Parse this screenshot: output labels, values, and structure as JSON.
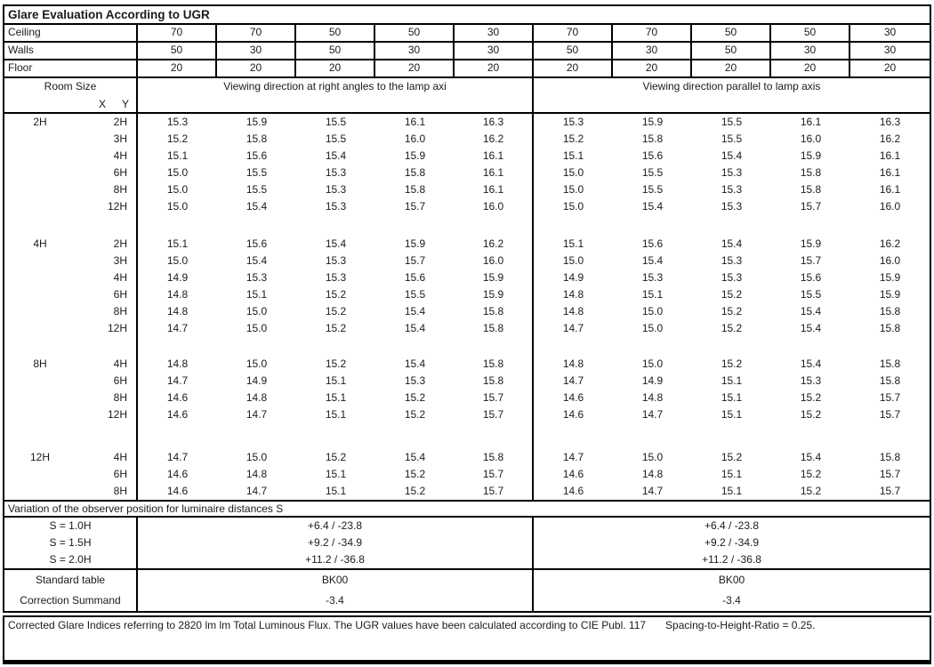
{
  "title": "Glare Evaluation According to UGR",
  "surface_rows": [
    {
      "label": "Ceiling",
      "values": [
        "70",
        "70",
        "50",
        "50",
        "30",
        "70",
        "70",
        "50",
        "50",
        "30"
      ]
    },
    {
      "label": "Walls",
      "values": [
        "50",
        "30",
        "50",
        "30",
        "30",
        "50",
        "30",
        "50",
        "30",
        "30"
      ]
    },
    {
      "label": "Floor",
      "values": [
        "20",
        "20",
        "20",
        "20",
        "20",
        "20",
        "20",
        "20",
        "20",
        "20"
      ]
    }
  ],
  "header": {
    "room_size": "Room Size",
    "x": "X",
    "y": "Y",
    "left_section": "Viewing direction at right angles to the lamp axi",
    "right_section": "Viewing direction parallel to lamp axis"
  },
  "ugr_blocks": [
    {
      "x": "2H",
      "rows": [
        {
          "y": "2H",
          "right_angle": [
            "15.3",
            "15.9",
            "15.5",
            "16.1",
            "16.3"
          ],
          "parallel": [
            "15.3",
            "15.9",
            "15.5",
            "16.1",
            "16.3"
          ]
        },
        {
          "y": "3H",
          "right_angle": [
            "15.2",
            "15.8",
            "15.5",
            "16.0",
            "16.2"
          ],
          "parallel": [
            "15.2",
            "15.8",
            "15.5",
            "16.0",
            "16.2"
          ]
        },
        {
          "y": "4H",
          "right_angle": [
            "15.1",
            "15.6",
            "15.4",
            "15.9",
            "16.1"
          ],
          "parallel": [
            "15.1",
            "15.6",
            "15.4",
            "15.9",
            "16.1"
          ]
        },
        {
          "y": "6H",
          "right_angle": [
            "15.0",
            "15.5",
            "15.3",
            "15.8",
            "16.1"
          ],
          "parallel": [
            "15.0",
            "15.5",
            "15.3",
            "15.8",
            "16.1"
          ]
        },
        {
          "y": "8H",
          "right_angle": [
            "15.0",
            "15.5",
            "15.3",
            "15.8",
            "16.1"
          ],
          "parallel": [
            "15.0",
            "15.5",
            "15.3",
            "15.8",
            "16.1"
          ]
        },
        {
          "y": "12H",
          "right_angle": [
            "15.0",
            "15.4",
            "15.3",
            "15.7",
            "16.0"
          ],
          "parallel": [
            "15.0",
            "15.4",
            "15.3",
            "15.7",
            "16.0"
          ]
        }
      ]
    },
    {
      "x": "4H",
      "rows": [
        {
          "y": "2H",
          "right_angle": [
            "15.1",
            "15.6",
            "15.4",
            "15.9",
            "16.2"
          ],
          "parallel": [
            "15.1",
            "15.6",
            "15.4",
            "15.9",
            "16.2"
          ]
        },
        {
          "y": "3H",
          "right_angle": [
            "15.0",
            "15.4",
            "15.3",
            "15.7",
            "16.0"
          ],
          "parallel": [
            "15.0",
            "15.4",
            "15.3",
            "15.7",
            "16.0"
          ]
        },
        {
          "y": "4H",
          "right_angle": [
            "14.9",
            "15.3",
            "15.3",
            "15.6",
            "15.9"
          ],
          "parallel": [
            "14.9",
            "15.3",
            "15.3",
            "15.6",
            "15.9"
          ]
        },
        {
          "y": "6H",
          "right_angle": [
            "14.8",
            "15.1",
            "15.2",
            "15.5",
            "15.9"
          ],
          "parallel": [
            "14.8",
            "15.1",
            "15.2",
            "15.5",
            "15.9"
          ]
        },
        {
          "y": "8H",
          "right_angle": [
            "14.8",
            "15.0",
            "15.2",
            "15.4",
            "15.8"
          ],
          "parallel": [
            "14.8",
            "15.0",
            "15.2",
            "15.4",
            "15.8"
          ]
        },
        {
          "y": "12H",
          "right_angle": [
            "14.7",
            "15.0",
            "15.2",
            "15.4",
            "15.8"
          ],
          "parallel": [
            "14.7",
            "15.0",
            "15.2",
            "15.4",
            "15.8"
          ]
        }
      ]
    },
    {
      "x": "8H",
      "rows": [
        {
          "y": "4H",
          "right_angle": [
            "14.8",
            "15.0",
            "15.2",
            "15.4",
            "15.8"
          ],
          "parallel": [
            "14.8",
            "15.0",
            "15.2",
            "15.4",
            "15.8"
          ]
        },
        {
          "y": "6H",
          "right_angle": [
            "14.7",
            "14.9",
            "15.1",
            "15.3",
            "15.8"
          ],
          "parallel": [
            "14.7",
            "14.9",
            "15.1",
            "15.3",
            "15.8"
          ]
        },
        {
          "y": "8H",
          "right_angle": [
            "14.6",
            "14.8",
            "15.1",
            "15.2",
            "15.7"
          ],
          "parallel": [
            "14.6",
            "14.8",
            "15.1",
            "15.2",
            "15.7"
          ]
        },
        {
          "y": "12H",
          "right_angle": [
            "14.6",
            "14.7",
            "15.1",
            "15.2",
            "15.7"
          ],
          "parallel": [
            "14.6",
            "14.7",
            "15.1",
            "15.2",
            "15.7"
          ]
        }
      ]
    },
    {
      "x": "12H",
      "rows": [
        {
          "y": "4H",
          "right_angle": [
            "14.7",
            "15.0",
            "15.2",
            "15.4",
            "15.8"
          ],
          "parallel": [
            "14.7",
            "15.0",
            "15.2",
            "15.4",
            "15.8"
          ]
        },
        {
          "y": "6H",
          "right_angle": [
            "14.6",
            "14.8",
            "15.1",
            "15.2",
            "15.7"
          ],
          "parallel": [
            "14.6",
            "14.8",
            "15.1",
            "15.2",
            "15.7"
          ]
        },
        {
          "y": "8H",
          "right_angle": [
            "14.6",
            "14.7",
            "15.1",
            "15.2",
            "15.7"
          ],
          "parallel": [
            "14.6",
            "14.7",
            "15.1",
            "15.2",
            "15.7"
          ]
        }
      ]
    }
  ],
  "variation": {
    "title": "Variation of the observer position for luminaire distances S",
    "rows": [
      {
        "label": "S = 1.0H",
        "left": "+6.4 / -23.8",
        "right": "+6.4 / -23.8"
      },
      {
        "label": "S = 1.5H",
        "left": "+9.2 / -34.9",
        "right": "+9.2 / -34.9"
      },
      {
        "label": "S = 2.0H",
        "left": "+11.2 / -36.8",
        "right": "+11.2 / -36.8"
      }
    ]
  },
  "summary_rows": [
    {
      "label": "Standard table",
      "left": "BK00",
      "right": "BK00"
    },
    {
      "label": "Correction Summand",
      "left": "-3.4",
      "right": "-3.4"
    }
  ],
  "footer": {
    "note": "Corrected Glare Indices referring to 2820 lm lm Total Luminous Flux. The UGR values have been calculated according to CIE Publ. 117",
    "ratio": "Spacing-to-Height-Ratio = 0.25."
  },
  "colors": {
    "border": "#000000",
    "text": "#1b1b1b",
    "background": "#ffffff"
  }
}
